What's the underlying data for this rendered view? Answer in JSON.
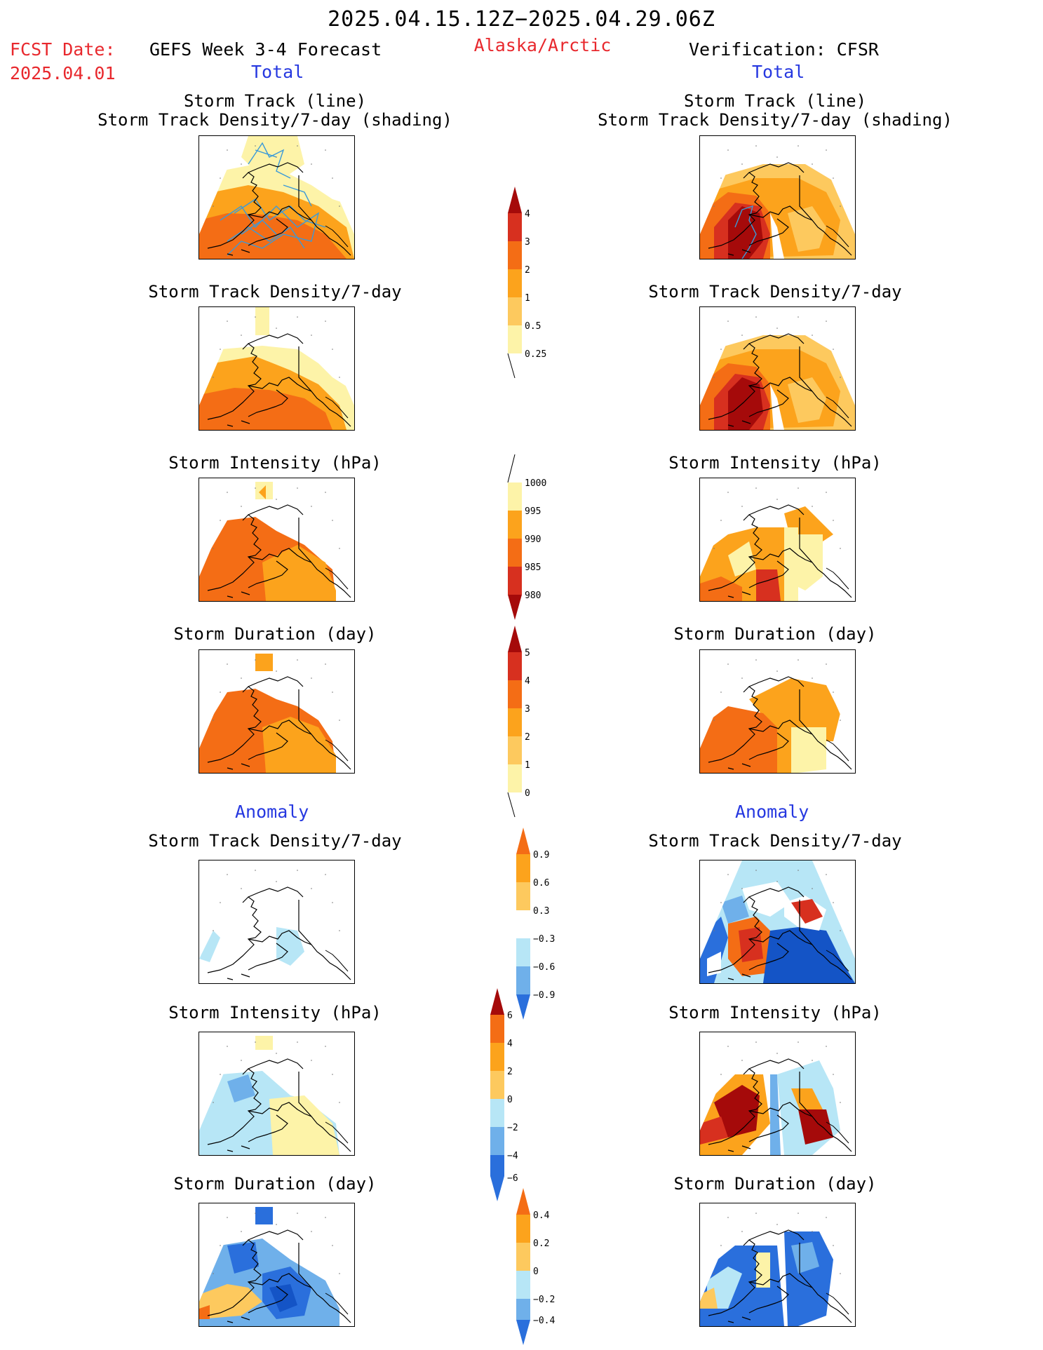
{
  "header": {
    "date_range": "2025.04.15.12Z−2025.04.29.06Z",
    "fcst_label": "FCST Date:",
    "fcst_date": "2025.04.01",
    "left_title": "GEFS Week 3-4 Forecast",
    "region": "Alaska/Arctic",
    "right_title": "Verification: CFSR",
    "left_sub": "Total",
    "right_sub": "Total",
    "anomaly_left": "Anomaly",
    "anomaly_right": "Anomaly"
  },
  "panels": {
    "track_line": "Storm Track (line)",
    "track_density_shading": "Storm Track Density/7-day (shading)",
    "track_density": "Storm Track Density/7-day",
    "intensity": "Storm Intensity (hPa)",
    "duration": "Storm Duration (day)"
  },
  "colorbars": {
    "density": [
      "4",
      "3",
      "2",
      "1",
      "0.5",
      "0.25"
    ],
    "intensity": [
      "1000",
      "995",
      "990",
      "985",
      "980"
    ],
    "duration": [
      "5",
      "4",
      "3",
      "2",
      "1",
      "0"
    ],
    "density_anom": [
      "0.9",
      "0.6",
      "0.3",
      "−0.3",
      "−0.6",
      "−0.9"
    ],
    "intensity_anom": [
      "6",
      "4",
      "2",
      "0",
      "−2",
      "−4",
      "−6"
    ],
    "duration_anom": [
      "0.4",
      "0.2",
      "0",
      "−0.2",
      "−0.4"
    ]
  },
  "colors": {
    "dark_red": "#a50a0a",
    "red": "#d7301f",
    "orange_red": "#f46d15",
    "orange": "#fca31c",
    "light_orange": "#fdc95e",
    "pale_yellow": "#fdf3a8",
    "light_blue": "#b7e6f6",
    "mid_blue": "#6fb0ea",
    "blue": "#2a6fdc",
    "dark_blue": "#1454c6",
    "track_line": "#3b9ad8"
  }
}
